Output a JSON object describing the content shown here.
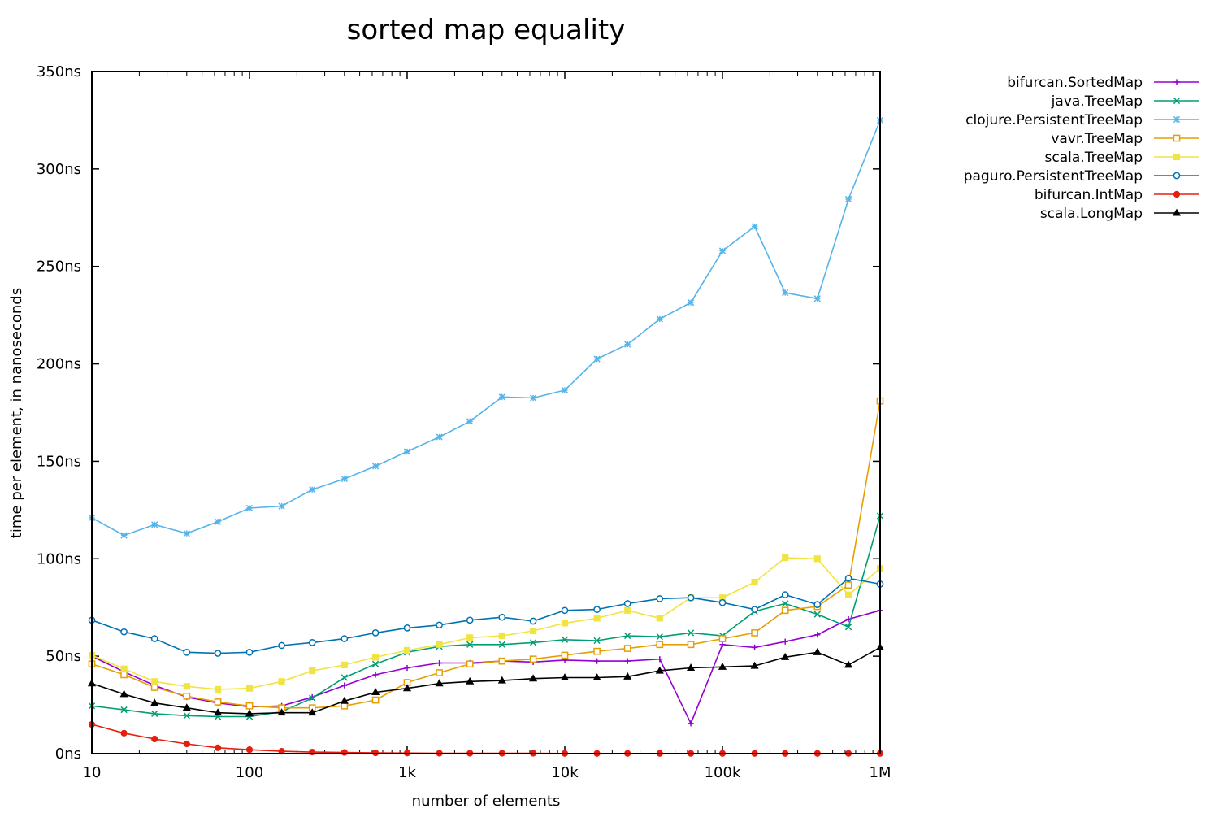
{
  "chart_data": {
    "type": "line",
    "title": "sorted map equality",
    "xlabel": "number of elements",
    "ylabel": "time per element, in nanoseconds",
    "x_scale": "log",
    "xlim": [
      10,
      1000000
    ],
    "ylim": [
      0,
      350
    ],
    "x_ticks": [
      {
        "value": 10,
        "label": "10"
      },
      {
        "value": 100,
        "label": "100"
      },
      {
        "value": 1000,
        "label": "1k"
      },
      {
        "value": 10000,
        "label": "10k"
      },
      {
        "value": 100000,
        "label": "100k"
      },
      {
        "value": 1000000,
        "label": "1M"
      }
    ],
    "y_ticks": [
      {
        "value": 0,
        "label": "0ns"
      },
      {
        "value": 50,
        "label": "50ns"
      },
      {
        "value": 100,
        "label": "100ns"
      },
      {
        "value": 150,
        "label": "150ns"
      },
      {
        "value": 200,
        "label": "200ns"
      },
      {
        "value": 250,
        "label": "250ns"
      },
      {
        "value": 300,
        "label": "300ns"
      },
      {
        "value": 350,
        "label": "350ns"
      }
    ],
    "legend_position": "outside-top-right",
    "x": [
      10,
      16,
      25,
      40,
      63,
      100,
      160,
      250,
      400,
      630,
      1000,
      1600,
      2500,
      4000,
      6300,
      10000,
      16000,
      25000,
      40000,
      63000,
      100000,
      160000,
      250000,
      400000,
      630000,
      1000000
    ],
    "series": [
      {
        "name": "bifurcan.SortedMap",
        "color": "#9400d3",
        "marker": "plus",
        "values": [
          50,
          42,
          35,
          29,
          26,
          24,
          24.5,
          29,
          35,
          40.5,
          44,
          46.5,
          46.5,
          47.5,
          47,
          48,
          47.5,
          47.5,
          48.5,
          15.5,
          56,
          54.5,
          57.5,
          61,
          69,
          73.5
        ]
      },
      {
        "name": "java.TreeMap",
        "color": "#009e73",
        "marker": "cross",
        "values": [
          24.5,
          22.5,
          20.5,
          19.5,
          19,
          19,
          21.5,
          28.5,
          39,
          46,
          52,
          55,
          56,
          56,
          57,
          58.5,
          58,
          60.5,
          60,
          62,
          60.5,
          73,
          77,
          71.5,
          65,
          122
        ]
      },
      {
        "name": "clojure.PersistentTreeMap",
        "color": "#56b4e9",
        "marker": "star",
        "values": [
          121,
          112,
          117.5,
          113,
          119,
          126,
          127,
          135.5,
          141,
          147.5,
          155,
          162.5,
          170.5,
          183,
          182.5,
          186.5,
          202.5,
          210,
          223,
          231.5,
          258,
          270.5,
          236.5,
          233.5,
          284.5,
          325
        ]
      },
      {
        "name": "vavr.TreeMap",
        "color": "#e69f00",
        "marker": "square-open",
        "values": [
          46,
          40.5,
          34,
          29.5,
          26.5,
          24.5,
          23.5,
          23.5,
          24.5,
          27.5,
          36.5,
          41.5,
          46,
          47.5,
          48.5,
          50.5,
          52.5,
          54,
          56,
          56,
          59,
          62,
          73.5,
          75.5,
          86.5,
          181
        ]
      },
      {
        "name": "scala.TreeMap",
        "color": "#f0e442",
        "marker": "square-filled",
        "values": [
          50.5,
          43.5,
          37,
          34.5,
          33,
          33.5,
          37,
          42.5,
          45.5,
          49.5,
          53,
          56,
          59.5,
          60.5,
          63,
          67,
          69.5,
          73.5,
          69.5,
          80,
          80,
          88,
          100.5,
          100,
          81.5,
          95
        ]
      },
      {
        "name": "paguro.PersistentTreeMap",
        "color": "#0072b2",
        "marker": "circle-open",
        "values": [
          68.5,
          62.5,
          59,
          52,
          51.5,
          52,
          55.5,
          57,
          59,
          62,
          64.5,
          66,
          68.5,
          70,
          68,
          73.5,
          74,
          77,
          79.5,
          80,
          77.5,
          74,
          81.5,
          76.5,
          90,
          87
        ]
      },
      {
        "name": "bifurcan.IntMap",
        "color": "#e51e10",
        "marker": "circle-filled",
        "values": [
          15,
          10.5,
          7.5,
          5,
          3,
          2,
          1.2,
          0.8,
          0.6,
          0.4,
          0.3,
          0.2,
          0.2,
          0.2,
          0.2,
          0.1,
          0.1,
          0.1,
          0.1,
          0.1,
          0.1,
          0.1,
          0.1,
          0.1,
          0.1,
          0.1
        ]
      },
      {
        "name": "scala.LongMap",
        "color": "#000000",
        "marker": "triangle",
        "values": [
          36,
          30.5,
          26,
          23.5,
          21,
          20.5,
          21,
          21,
          27,
          31.5,
          33.5,
          36,
          37,
          37.5,
          38.5,
          39,
          39,
          39.5,
          42.5,
          44,
          44.5,
          45,
          49.5,
          52,
          45.5,
          54.5
        ]
      }
    ]
  }
}
